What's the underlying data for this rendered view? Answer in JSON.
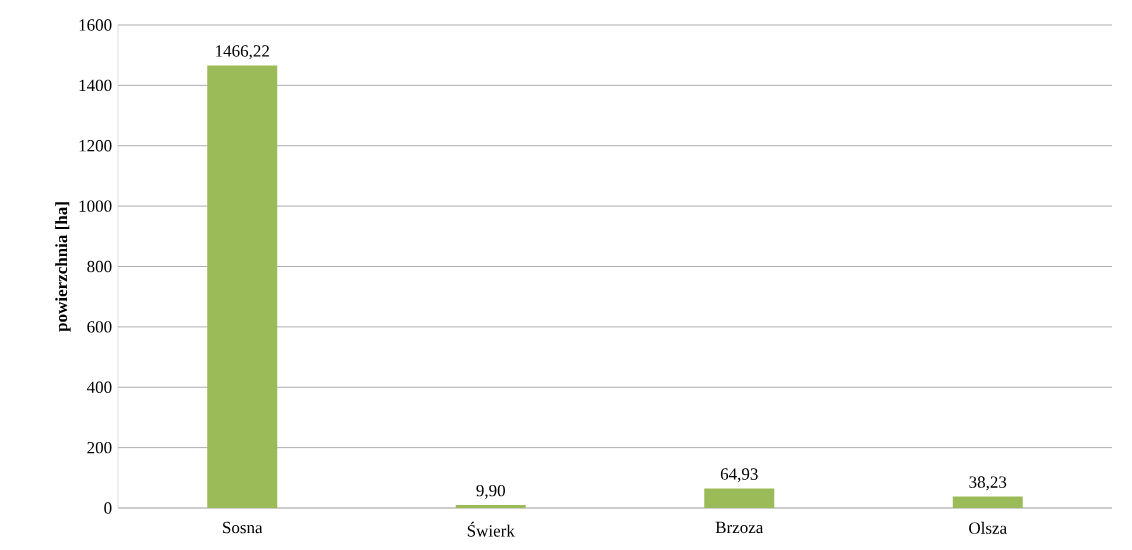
{
  "chart_data": {
    "type": "bar",
    "ylabel": "powierzchnia [ha]",
    "categories": [
      "Sosna",
      "Świerk",
      "Brzoza",
      "Olsza"
    ],
    "values": [
      1466.22,
      9.9,
      64.93,
      38.23
    ],
    "value_labels": [
      "1466,22",
      "9,90",
      "64,93",
      "38,23"
    ],
    "color": "#9bbb59",
    "ylim": [
      0,
      1600
    ],
    "yticks": [
      0,
      200,
      400,
      600,
      800,
      1000,
      1200,
      1400,
      1600
    ],
    "grid": "y"
  }
}
